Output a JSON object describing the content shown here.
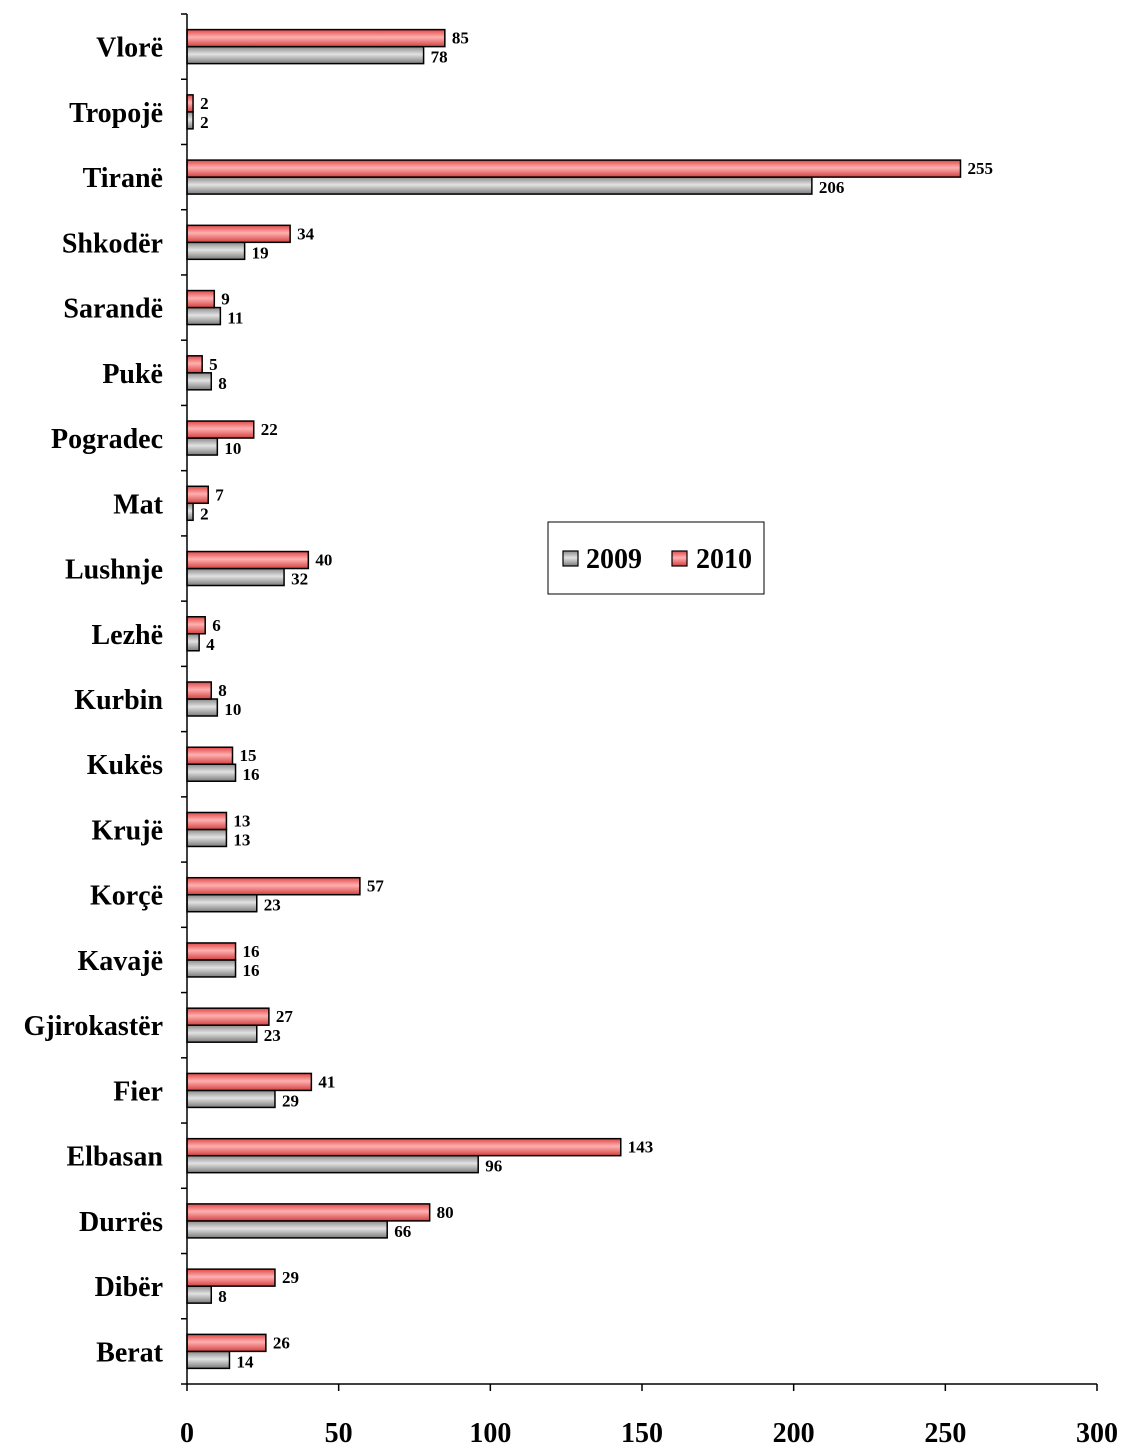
{
  "chart_data": {
    "type": "bar",
    "orientation": "horizontal",
    "categories": [
      "Berat",
      "Dibër",
      "Durrës",
      "Elbasan",
      "Fier",
      "Gjirokastër",
      "Kavajë",
      "Korçë",
      "Krujë",
      "Kukës",
      "Kurbin",
      "Lezhë",
      "Lushnje",
      "Mat",
      "Pogradec",
      "Pukë",
      "Sarandë",
      "Shkodër",
      "Tiranë",
      "Tropojë",
      "Vlorë"
    ],
    "series": [
      {
        "name": "2009",
        "color": "#b8b8b8",
        "values": [
          14,
          8,
          66,
          96,
          29,
          23,
          16,
          23,
          13,
          16,
          10,
          4,
          32,
          2,
          10,
          8,
          11,
          19,
          206,
          2,
          78
        ]
      },
      {
        "name": "2010",
        "color": "#ff6b6b",
        "values": [
          26,
          29,
          80,
          143,
          41,
          27,
          16,
          57,
          13,
          15,
          8,
          6,
          40,
          7,
          22,
          5,
          9,
          34,
          255,
          2,
          85
        ]
      }
    ],
    "title": "",
    "xlabel": "",
    "ylabel": "",
    "xlim": [
      0,
      300
    ],
    "xticks": [
      0,
      50,
      100,
      150,
      200,
      250,
      300
    ],
    "grid": false,
    "legend": "inside-center-right",
    "data_labels": true
  }
}
